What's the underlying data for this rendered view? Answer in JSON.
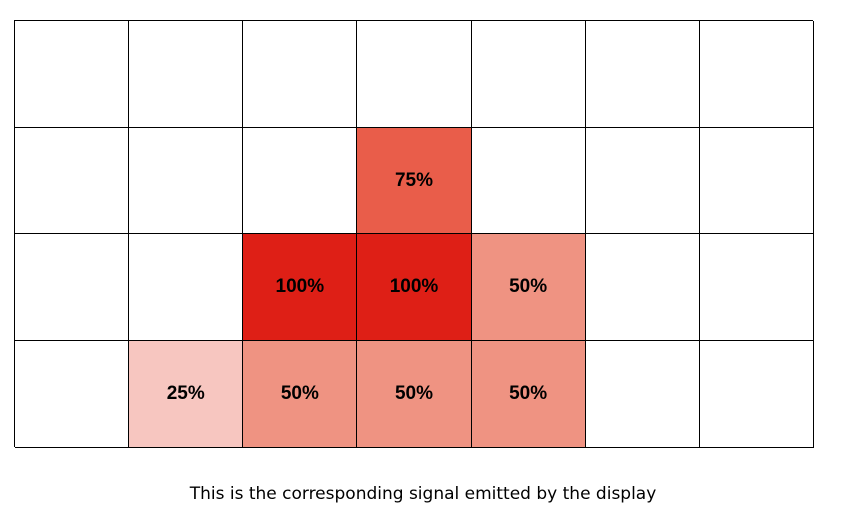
{
  "colors": {
    "empty": "#ffffff",
    "25": "#f7c6c0",
    "50": "#ef9382",
    "75": "#e95d4a",
    "100": "#de1f16",
    "grid_line": "#000000"
  },
  "grid": {
    "columns": 7,
    "rows": 4,
    "cells": [
      [
        "",
        "",
        "",
        "",
        "",
        "",
        ""
      ],
      [
        "",
        "",
        "",
        "75%",
        "",
        "",
        ""
      ],
      [
        "",
        "",
        "100%",
        "100%",
        "50%",
        "",
        ""
      ],
      [
        "",
        "25%",
        "50%",
        "50%",
        "50%",
        "",
        ""
      ]
    ]
  },
  "caption": "This is the corresponding signal emitted by the display"
}
